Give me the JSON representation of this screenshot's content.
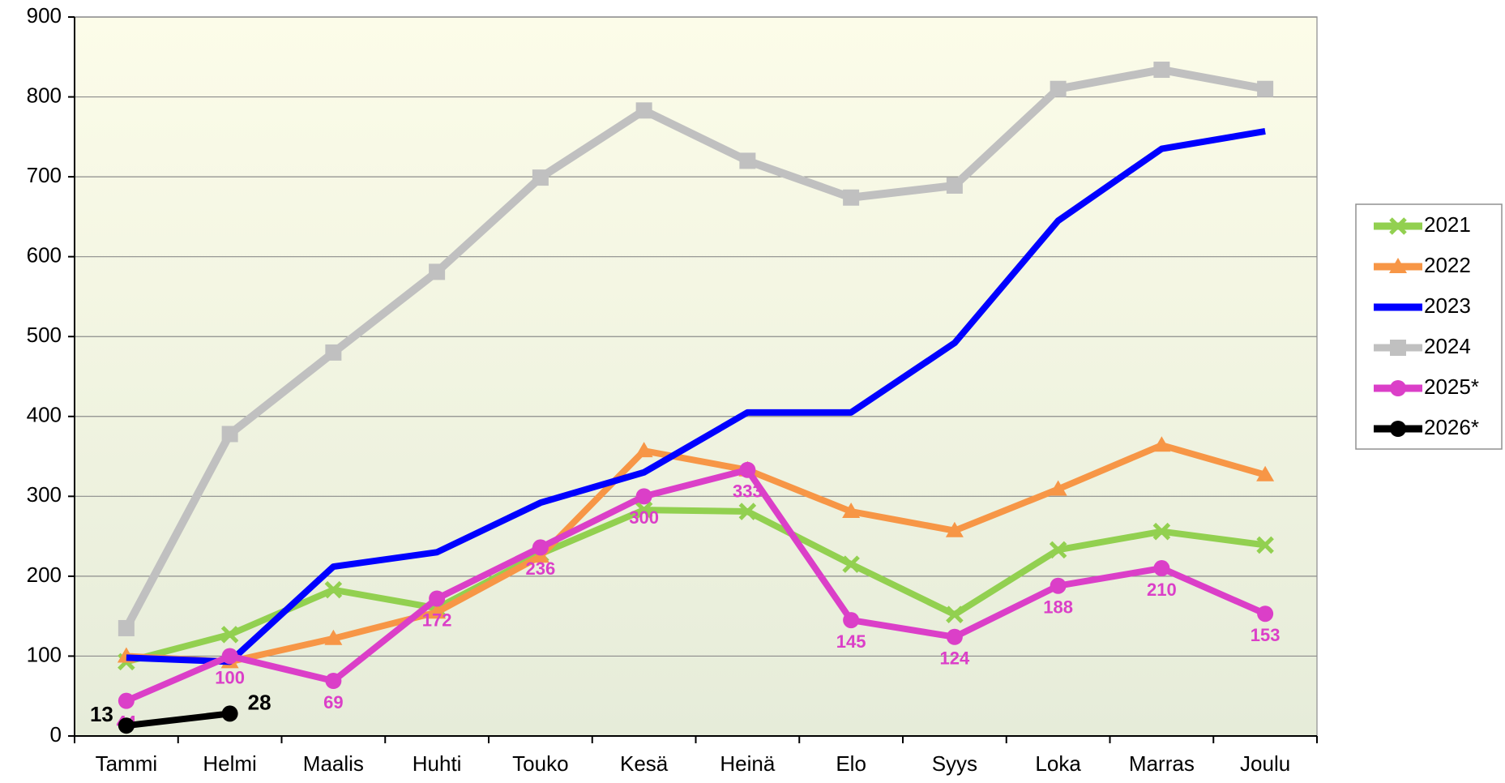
{
  "chart_data": {
    "type": "line",
    "categories": [
      "Tammi",
      "Helmi",
      "Maalis",
      "Huhti",
      "Touko",
      "Kesä",
      "Heinä",
      "Elo",
      "Syys",
      "Loka",
      "Marras",
      "Joulu"
    ],
    "ylim": [
      0,
      900
    ],
    "yticks": [
      0,
      100,
      200,
      300,
      400,
      500,
      600,
      700,
      800,
      900
    ],
    "grid": true,
    "legend": "right",
    "series": [
      {
        "name": "2021",
        "color": "#92d050",
        "marker": "x",
        "values": [
          93,
          127,
          183,
          160,
          228,
          283,
          281,
          215,
          152,
          233,
          256,
          239
        ]
      },
      {
        "name": "2022",
        "color": "#f79646",
        "marker": "triangle",
        "values": [
          100,
          93,
          122,
          155,
          225,
          357,
          333,
          281,
          257,
          309,
          364,
          327
        ]
      },
      {
        "name": "2023",
        "color": "#0000ff",
        "marker": "none",
        "values": [
          98,
          93,
          212,
          230,
          292,
          330,
          405,
          405,
          492,
          645,
          735,
          757
        ]
      },
      {
        "name": "2024",
        "color": "#c0c0c0",
        "marker": "square",
        "values": [
          135,
          378,
          480,
          581,
          699,
          783,
          720,
          674,
          689,
          810,
          834,
          810
        ]
      },
      {
        "name": "2025*",
        "color": "#db3fc8",
        "marker": "circle",
        "data_labels": true,
        "values": [
          44,
          100,
          69,
          172,
          236,
          300,
          333,
          145,
          124,
          188,
          210,
          153
        ]
      },
      {
        "name": "2026*",
        "color": "#000000",
        "marker": "circle",
        "data_labels": true,
        "values": [
          13,
          28,
          null,
          null,
          null,
          null,
          null,
          null,
          null,
          null,
          null,
          null
        ]
      }
    ]
  }
}
